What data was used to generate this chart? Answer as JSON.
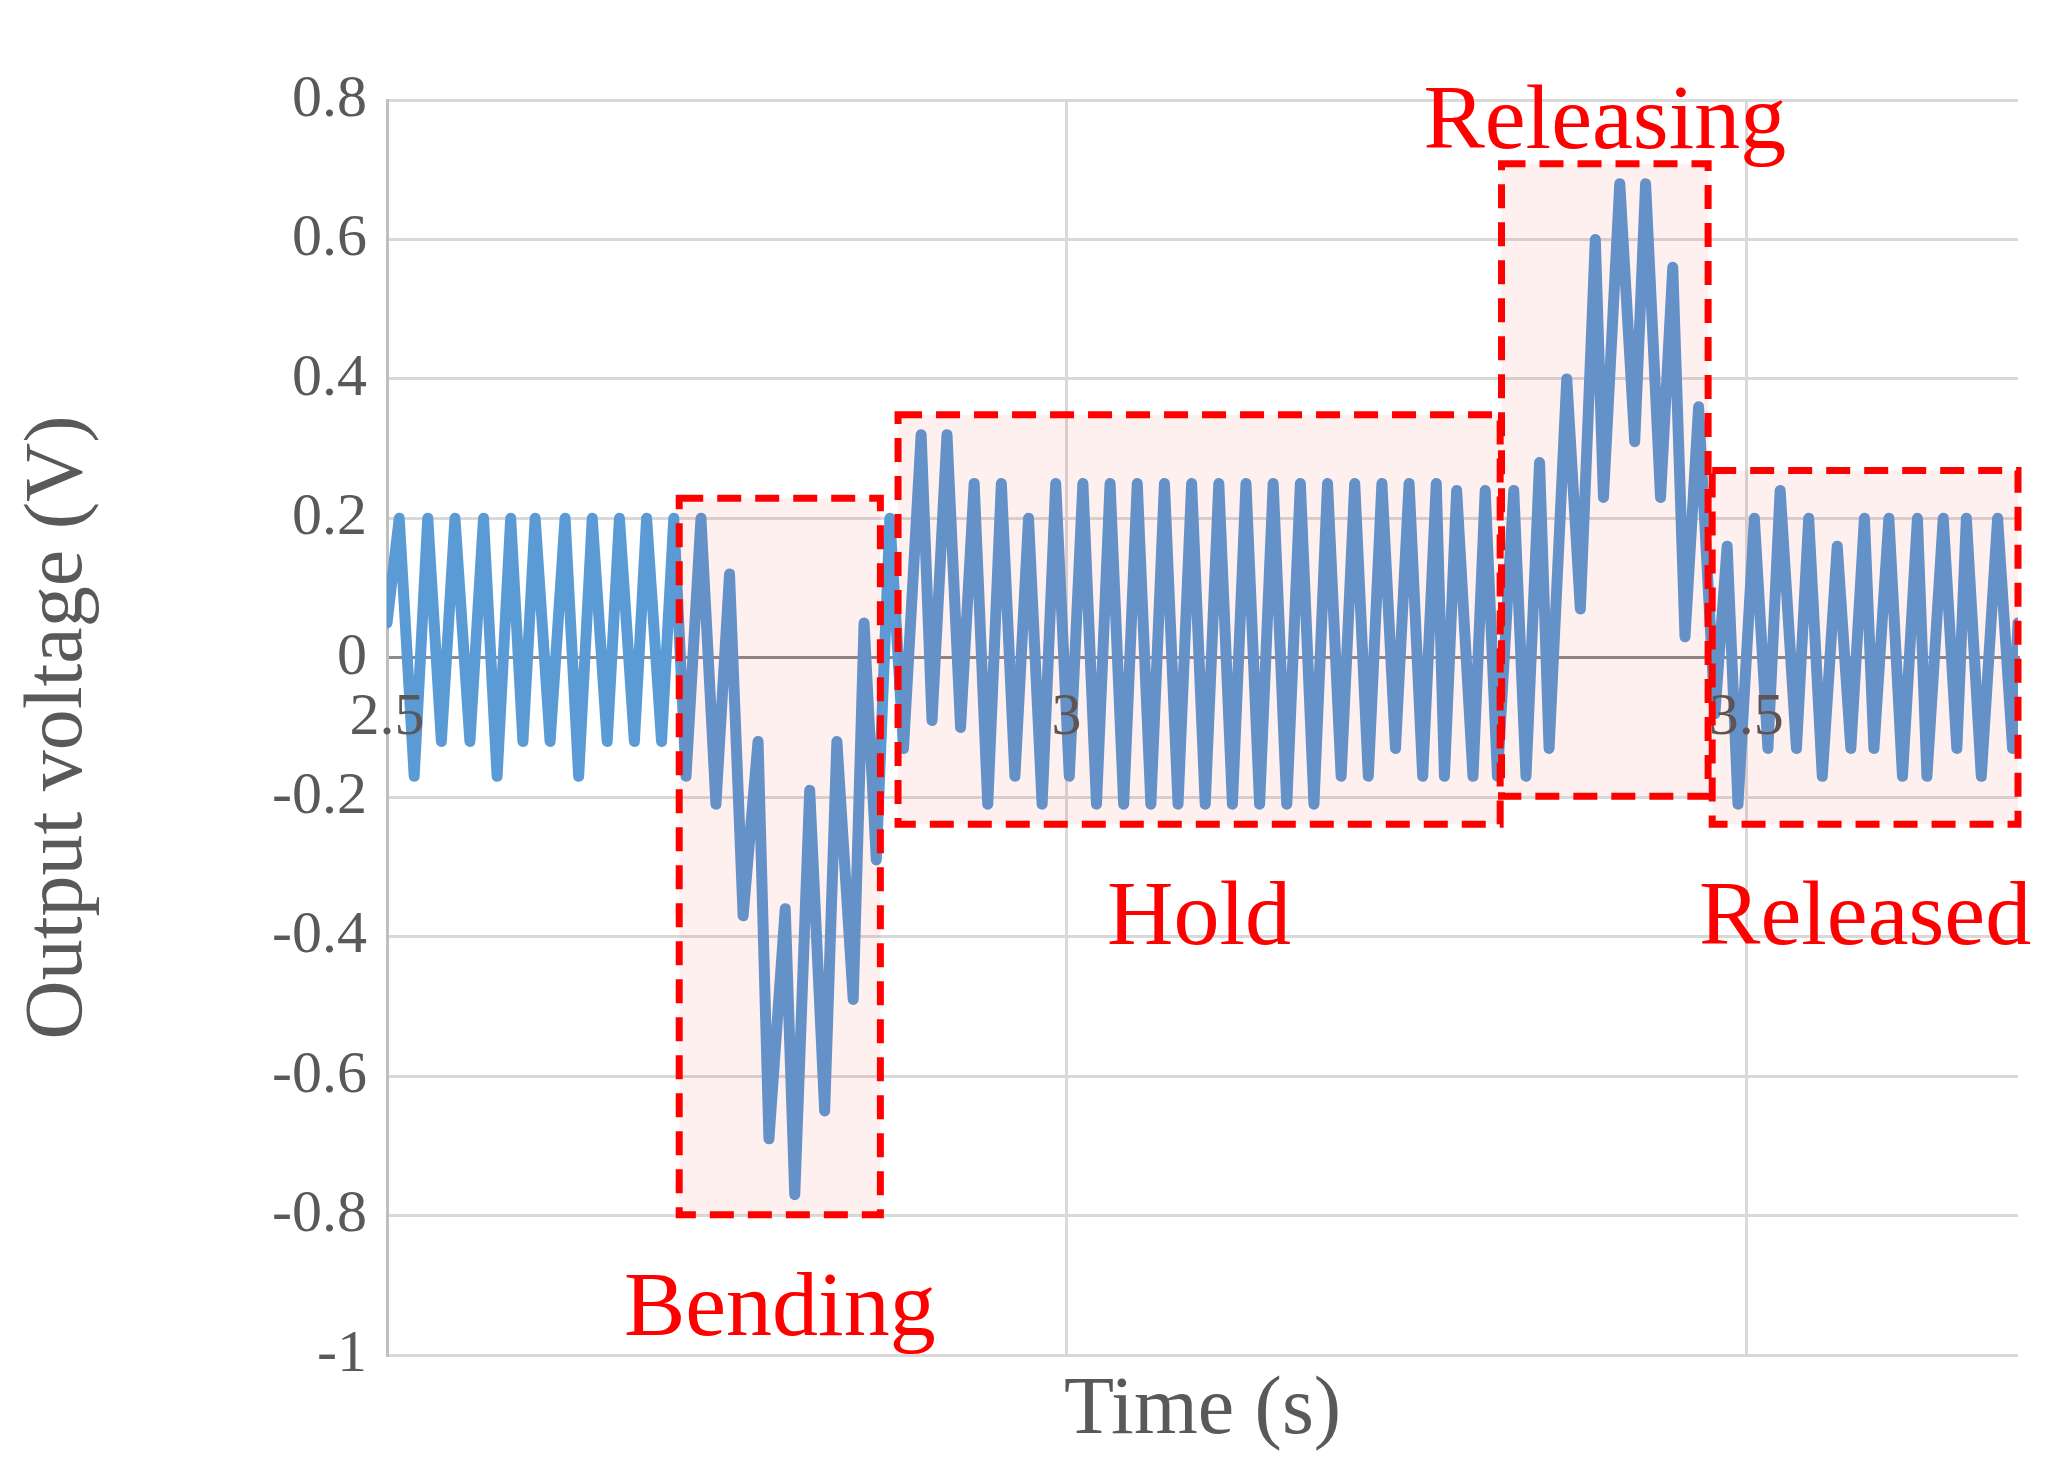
{
  "chart_data": {
    "type": "line",
    "xlabel": "Time (s)",
    "ylabel": "Output voltage (V)",
    "xlim": [
      2.5,
      3.7
    ],
    "xticks": [
      2.5,
      3,
      3.5
    ],
    "ylim": [
      -1,
      0.8
    ],
    "yticks": [
      -1,
      -0.8,
      -0.6,
      -0.4,
      -0.2,
      0,
      0.2,
      0.4,
      0.6,
      0.8
    ],
    "grid": true,
    "legend": false,
    "marker": "none",
    "line_style": "solid",
    "series": [
      {
        "color": "#5b9bd5",
        "x": [
          2.5,
          2.509,
          2.52,
          2.53,
          2.54,
          2.55,
          2.561,
          2.571,
          2.581,
          2.591,
          2.6,
          2.609,
          2.62,
          2.631,
          2.641,
          2.651,
          2.662,
          2.671,
          2.682,
          2.691,
          2.702,
          2.711,
          2.72,
          2.731,
          2.742,
          2.752,
          2.762,
          2.773,
          2.781,
          2.793,
          2.8,
          2.811,
          2.822,
          2.831,
          2.843,
          2.851,
          2.86,
          2.87,
          2.88,
          2.893,
          2.901,
          2.912,
          2.922,
          2.932,
          2.942,
          2.952,
          2.962,
          2.972,
          2.982,
          2.992,
          3.002,
          3.012,
          3.022,
          3.032,
          3.042,
          3.052,
          3.062,
          3.072,
          3.082,
          3.092,
          3.102,
          3.112,
          3.122,
          3.132,
          3.142,
          3.152,
          3.162,
          3.172,
          3.182,
          3.192,
          3.202,
          3.212,
          3.222,
          3.232,
          3.242,
          3.252,
          3.262,
          3.272,
          3.278,
          3.287,
          3.299,
          3.308,
          3.317,
          3.329,
          3.338,
          3.348,
          3.355,
          3.368,
          3.378,
          3.389,
          3.395,
          3.407,
          3.418,
          3.426,
          3.437,
          3.446,
          3.455,
          3.465,
          3.477,
          3.486,
          3.494,
          3.506,
          3.516,
          3.525,
          3.537,
          3.546,
          3.556,
          3.567,
          3.577,
          3.587,
          3.594,
          3.605,
          3.615,
          3.626,
          3.633,
          3.645,
          3.655,
          3.662,
          3.673,
          3.685,
          3.696,
          3.7
        ],
        "values": [
          0.05,
          0.2,
          -0.17,
          0.2,
          -0.12,
          0.2,
          -0.12,
          0.2,
          -0.17,
          0.2,
          -0.12,
          0.2,
          -0.12,
          0.2,
          -0.17,
          0.2,
          -0.12,
          0.2,
          -0.12,
          0.2,
          -0.12,
          0.2,
          -0.17,
          0.2,
          -0.21,
          0.12,
          -0.37,
          -0.12,
          -0.69,
          -0.36,
          -0.77,
          -0.19,
          -0.65,
          -0.12,
          -0.49,
          0.05,
          -0.29,
          0.2,
          -0.13,
          0.32,
          -0.09,
          0.32,
          -0.1,
          0.25,
          -0.21,
          0.25,
          -0.17,
          0.2,
          -0.21,
          0.25,
          -0.17,
          0.25,
          -0.21,
          0.25,
          -0.21,
          0.25,
          -0.21,
          0.25,
          -0.21,
          0.25,
          -0.21,
          0.25,
          -0.21,
          0.25,
          -0.21,
          0.25,
          -0.21,
          0.25,
          -0.21,
          0.25,
          -0.17,
          0.25,
          -0.17,
          0.25,
          -0.13,
          0.25,
          -0.17,
          0.25,
          -0.17,
          0.24,
          -0.17,
          0.24,
          -0.17,
          0.24,
          -0.17,
          0.28,
          -0.13,
          0.4,
          0.07,
          0.6,
          0.23,
          0.68,
          0.31,
          0.68,
          0.23,
          0.56,
          0.03,
          0.36,
          -0.08,
          0.16,
          -0.21,
          0.2,
          -0.13,
          0.24,
          -0.13,
          0.2,
          -0.17,
          0.16,
          -0.13,
          0.2,
          -0.13,
          0.2,
          -0.17,
          0.2,
          -0.17,
          0.2,
          -0.13,
          0.2,
          -0.17,
          0.2,
          -0.13,
          0.05
        ]
      }
    ],
    "bands": [
      {
        "axis": "x",
        "from": 2.715,
        "to": 2.863,
        "label": "Bending",
        "color": "#ff0000"
      },
      {
        "axis": "x",
        "from": 2.876,
        "to": 3.319,
        "label": "Hold",
        "color": "#ff0000"
      },
      {
        "axis": "x",
        "from": 3.32,
        "to": 3.472,
        "label": "Releasing",
        "color": "#ff0000"
      },
      {
        "axis": "x",
        "from": 3.475,
        "to": 3.7,
        "label": "Released",
        "color": "#ff0000"
      }
    ]
  }
}
